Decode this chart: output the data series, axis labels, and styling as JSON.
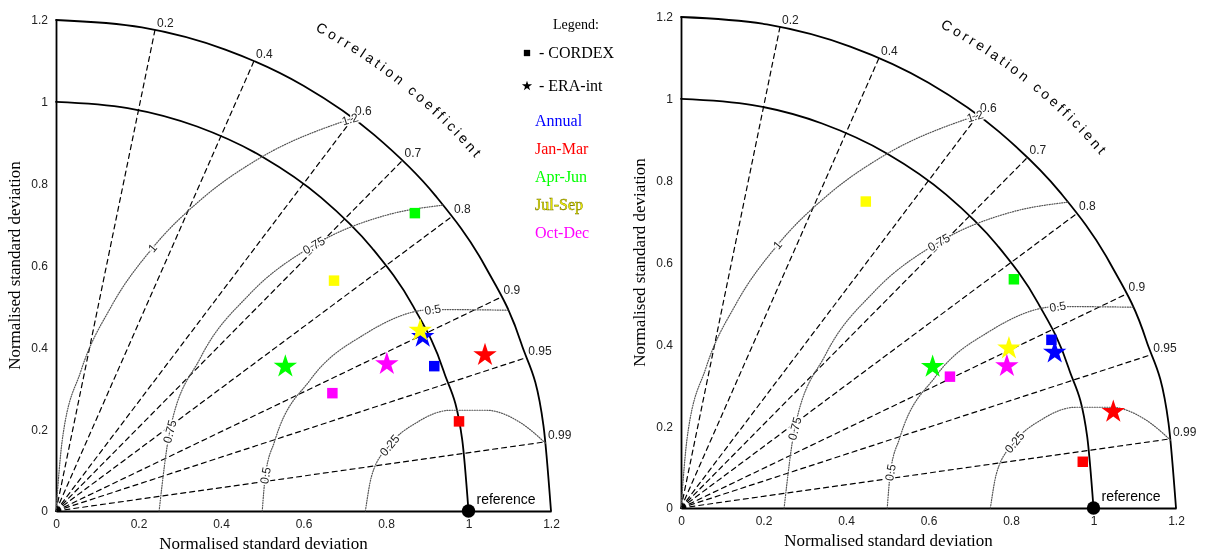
{
  "chart_data": [
    {
      "type": "scatter",
      "xlabel": "Normalised standard deviation",
      "ylabel": "Normalised standard deviation",
      "xlim": [
        0,
        1.2
      ],
      "ylim": [
        0,
        1.2
      ],
      "xticks": [
        0,
        0.2,
        0.4,
        0.6,
        0.8,
        1,
        1.2
      ],
      "yticks": [
        0,
        0.2,
        0.4,
        0.6,
        0.8,
        1,
        1.2
      ],
      "legend": "top right",
      "legend_title": "Legend:",
      "annotations": [
        "Correlation coefficient",
        "- CORDEX",
        "- ERA-int",
        {
          "text": "reference",
          "x": 1,
          "y": 0
        },
        {
          "text": "0.2",
          "x": 0.24,
          "y": 1.1758
        },
        {
          "text": "0.4",
          "x": 0.48,
          "y": 1.0998
        },
        {
          "text": "0.6",
          "x": 0.72,
          "y": 0.96
        },
        {
          "text": "0.7",
          "x": 0.84,
          "y": 0.857
        },
        {
          "text": "0.8",
          "x": 0.96,
          "y": 0.72
        },
        {
          "text": "0.9",
          "x": 1.08,
          "y": 0.5231
        },
        {
          "text": "0.95",
          "x": 1.14,
          "y": 0.3747
        },
        {
          "text": "0.99",
          "x": 1.188,
          "y": 0.1693
        },
        {
          "text": "0.25",
          "x": 0.8085,
          "y": 0.1607
        },
        {
          "text": "0.5",
          "x": 0.5076,
          "y": 0.0868
        },
        {
          "text": "0.5",
          "x": 0.9132,
          "y": 0.4924
        },
        {
          "text": "0.75",
          "x": 0.2756,
          "y": 0.1941
        },
        {
          "text": "0.75",
          "x": 0.625,
          "y": 0.6495
        },
        {
          "text": "1",
          "x": 0.234,
          "y": 0.6428
        },
        {
          "text": "1.2",
          "x": 0.7126,
          "y": 0.9578
        }
      ],
      "series": [
        {
          "type": "line",
          "color": "#000000",
          "line_style": "solid",
          "marker": "none",
          "x": [
            0,
            0.1736,
            0.342,
            0.5,
            0.6428,
            0.766,
            0.866,
            0.9397,
            0.9848,
            1
          ],
          "values": [
            1,
            0.9848,
            0.9397,
            0.866,
            0.766,
            0.6428,
            0.5,
            0.342,
            0.1736,
            0
          ]
        },
        {
          "type": "line",
          "color": "#000000",
          "line_style": "solid",
          "marker": "none",
          "x": [
            0,
            0.2083,
            0.4104,
            0.6,
            0.7714,
            0.9192,
            1.0392,
            1.1276,
            1.1818,
            1.2
          ],
          "values": [
            1.2,
            1.1818,
            1.1276,
            1.0392,
            0.9192,
            0.7714,
            0.6,
            0.4104,
            0.2083,
            0
          ]
        },
        {
          "type": "line",
          "color": "#000000",
          "line_style": "dashed",
          "marker": "none",
          "x": [
            0,
            0.24
          ],
          "values": [
            0,
            1.1758
          ]
        },
        {
          "type": "line",
          "color": "#000000",
          "line_style": "dashed",
          "marker": "none",
          "x": [
            0,
            0.48
          ],
          "values": [
            0,
            1.0998
          ]
        },
        {
          "type": "line",
          "color": "#000000",
          "line_style": "dashed",
          "marker": "none",
          "x": [
            0,
            0.72
          ],
          "values": [
            0,
            0.96
          ]
        },
        {
          "type": "line",
          "color": "#000000",
          "line_style": "dashed",
          "marker": "none",
          "x": [
            0,
            0.84
          ],
          "values": [
            0,
            0.857
          ]
        },
        {
          "type": "line",
          "color": "#000000",
          "line_style": "dashed",
          "marker": "none",
          "x": [
            0,
            0.96
          ],
          "values": [
            0,
            0.72
          ]
        },
        {
          "type": "line",
          "color": "#000000",
          "line_style": "dashed",
          "marker": "none",
          "x": [
            0,
            1.08
          ],
          "values": [
            0,
            0.5231
          ]
        },
        {
          "type": "line",
          "color": "#000000",
          "line_style": "dashed",
          "marker": "none",
          "x": [
            0,
            1.14
          ],
          "values": [
            0,
            0.3747
          ]
        },
        {
          "type": "line",
          "color": "#000000",
          "line_style": "dashed",
          "marker": "none",
          "x": [
            0,
            1.188
          ],
          "values": [
            0,
            0.1693
          ]
        },
        {
          "type": "line",
          "color": "#555555",
          "line_style": "dotted",
          "marker": "none",
          "x": [
            0.75,
            0.7651,
            0.8085,
            0.875,
            0.9566,
            1.0434,
            1.125,
            1.1887
          ],
          "values": [
            0,
            0.0855,
            0.1607,
            0.2165,
            0.2462,
            0.2462,
            0.2165,
            0.164
          ]
        },
        {
          "type": "line",
          "color": "#555555",
          "line_style": "dotted",
          "marker": "none",
          "x": [
            0.5,
            0.5076,
            0.5302,
            0.617,
            0.75,
            0.9132,
            1.0954
          ],
          "values": [
            0,
            0.0868,
            0.171,
            0.3214,
            0.433,
            0.4924,
            0.4908
          ]
        },
        {
          "type": "line",
          "color": "#555555",
          "line_style": "dotted",
          "marker": "none",
          "x": [
            0.25,
            0.2756,
            0.3505,
            0.4697,
            0.625,
            0.8059,
            0.9386
          ],
          "values": [
            0,
            0.1941,
            0.375,
            0.5303,
            0.6495,
            0.7244,
            0.7475
          ]
        },
        {
          "type": "line",
          "color": "#555555",
          "line_style": "dotted",
          "marker": "none",
          "x": [
            0,
            0.0152,
            0.0603,
            0.134,
            0.234,
            0.3572,
            0.5,
            0.7126
          ],
          "values": [
            0,
            0.1736,
            0.342,
            0.5,
            0.6428,
            0.766,
            0.866,
            0.9578
          ]
        },
        {
          "name": "Annual",
          "color": "#0000ff",
          "marker": "square",
          "x": [
            0.917
          ],
          "values": [
            0.354
          ]
        },
        {
          "name": "Jan-Mar",
          "color": "#ff0000",
          "marker": "square",
          "x": [
            0.977
          ],
          "values": [
            0.219
          ]
        },
        {
          "name": "Apr-Jun",
          "color": "#00ff00",
          "marker": "square",
          "x": [
            0.87
          ],
          "values": [
            0.728
          ]
        },
        {
          "name": "Jul-Sep",
          "color": "#ffff00",
          "marker": "square",
          "x": [
            0.674
          ],
          "values": [
            0.563
          ]
        },
        {
          "name": "Oct-Dec",
          "color": "#ff00ff",
          "marker": "square",
          "x": [
            0.67
          ],
          "values": [
            0.288
          ]
        },
        {
          "color": "#0000ff",
          "marker": "star",
          "x": [
            0.889
          ],
          "values": [
            0.426
          ]
        },
        {
          "color": "#ff0000",
          "marker": "star",
          "x": [
            1.04
          ],
          "values": [
            0.381
          ]
        },
        {
          "color": "#00ff00",
          "marker": "star",
          "x": [
            0.556
          ],
          "values": [
            0.353
          ]
        },
        {
          "color": "#ffff00",
          "marker": "star",
          "x": [
            0.883
          ],
          "values": [
            0.441
          ]
        },
        {
          "color": "#ff00ff",
          "marker": "star",
          "x": [
            0.802
          ],
          "values": [
            0.359
          ]
        },
        {
          "color": "#000000",
          "marker": "circle",
          "x": [
            1
          ],
          "values": [
            0
          ]
        }
      ]
    },
    {
      "type": "scatter",
      "xlabel": "Normalised standard deviation",
      "ylabel": "Normalised standard deviation",
      "xlim": [
        0,
        1.2
      ],
      "ylim": [
        0,
        1.2
      ],
      "xticks": [
        0,
        0.2,
        0.4,
        0.6,
        0.8,
        1,
        1.2
      ],
      "yticks": [
        0,
        0.2,
        0.4,
        0.6,
        0.8,
        1,
        1.2
      ],
      "annotations": [
        "Correlation coefficient",
        {
          "text": "reference",
          "x": 1,
          "y": 0
        },
        {
          "text": "0.2",
          "x": 0.24,
          "y": 1.1758
        },
        {
          "text": "0.4",
          "x": 0.48,
          "y": 1.0998
        },
        {
          "text": "0.6",
          "x": 0.72,
          "y": 0.96
        },
        {
          "text": "0.7",
          "x": 0.84,
          "y": 0.857
        },
        {
          "text": "0.8",
          "x": 0.96,
          "y": 0.72
        },
        {
          "text": "0.9",
          "x": 1.08,
          "y": 0.5231
        },
        {
          "text": "0.95",
          "x": 1.14,
          "y": 0.3747
        },
        {
          "text": "0.99",
          "x": 1.188,
          "y": 0.1693
        },
        {
          "text": "0.25",
          "x": 0.8085,
          "y": 0.1607
        },
        {
          "text": "0.5",
          "x": 0.5076,
          "y": 0.0868
        },
        {
          "text": "0.5",
          "x": 0.9132,
          "y": 0.4924
        },
        {
          "text": "0.75",
          "x": 0.2756,
          "y": 0.1941
        },
        {
          "text": "0.75",
          "x": 0.625,
          "y": 0.6495
        },
        {
          "text": "1",
          "x": 0.234,
          "y": 0.6428
        },
        {
          "text": "1.2",
          "x": 0.7126,
          "y": 0.9578
        }
      ],
      "series": [
        {
          "type": "line",
          "color": "#000000",
          "line_style": "solid",
          "marker": "none",
          "x": [
            0,
            0.1736,
            0.342,
            0.5,
            0.6428,
            0.766,
            0.866,
            0.9397,
            0.9848,
            1
          ],
          "values": [
            1,
            0.9848,
            0.9397,
            0.866,
            0.766,
            0.6428,
            0.5,
            0.342,
            0.1736,
            0
          ]
        },
        {
          "type": "line",
          "color": "#000000",
          "line_style": "solid",
          "marker": "none",
          "x": [
            0,
            0.2083,
            0.4104,
            0.6,
            0.7714,
            0.9192,
            1.0392,
            1.1276,
            1.1818,
            1.2
          ],
          "values": [
            1.2,
            1.1818,
            1.1276,
            1.0392,
            0.9192,
            0.7714,
            0.6,
            0.4104,
            0.2083,
            0
          ]
        },
        {
          "type": "line",
          "color": "#000000",
          "line_style": "dashed",
          "marker": "none",
          "x": [
            0,
            0.24
          ],
          "values": [
            0,
            1.1758
          ]
        },
        {
          "type": "line",
          "color": "#000000",
          "line_style": "dashed",
          "marker": "none",
          "x": [
            0,
            0.48
          ],
          "values": [
            0,
            1.0998
          ]
        },
        {
          "type": "line",
          "color": "#000000",
          "line_style": "dashed",
          "marker": "none",
          "x": [
            0,
            0.72
          ],
          "values": [
            0,
            0.96
          ]
        },
        {
          "type": "line",
          "color": "#000000",
          "line_style": "dashed",
          "marker": "none",
          "x": [
            0,
            0.84
          ],
          "values": [
            0,
            0.857
          ]
        },
        {
          "type": "line",
          "color": "#000000",
          "line_style": "dashed",
          "marker": "none",
          "x": [
            0,
            0.96
          ],
          "values": [
            0,
            0.72
          ]
        },
        {
          "type": "line",
          "color": "#000000",
          "line_style": "dashed",
          "marker": "none",
          "x": [
            0,
            1.08
          ],
          "values": [
            0,
            0.5231
          ]
        },
        {
          "type": "line",
          "color": "#000000",
          "line_style": "dashed",
          "marker": "none",
          "x": [
            0,
            1.14
          ],
          "values": [
            0,
            0.3747
          ]
        },
        {
          "type": "line",
          "color": "#000000",
          "line_style": "dashed",
          "marker": "none",
          "x": [
            0,
            1.188
          ],
          "values": [
            0,
            0.1693
          ]
        },
        {
          "type": "line",
          "color": "#555555",
          "line_style": "dotted",
          "marker": "none",
          "x": [
            0.75,
            0.7651,
            0.8085,
            0.875,
            0.9566,
            1.0434,
            1.125,
            1.1887
          ],
          "values": [
            0,
            0.0855,
            0.1607,
            0.2165,
            0.2462,
            0.2462,
            0.2165,
            0.164
          ]
        },
        {
          "type": "line",
          "color": "#555555",
          "line_style": "dotted",
          "marker": "none",
          "x": [
            0.5,
            0.5076,
            0.5302,
            0.617,
            0.75,
            0.9132,
            1.0954
          ],
          "values": [
            0,
            0.0868,
            0.171,
            0.3214,
            0.433,
            0.4924,
            0.4908
          ]
        },
        {
          "type": "line",
          "color": "#555555",
          "line_style": "dotted",
          "marker": "none",
          "x": [
            0.25,
            0.2756,
            0.3505,
            0.4697,
            0.625,
            0.8059,
            0.9386
          ],
          "values": [
            0,
            0.1941,
            0.375,
            0.5303,
            0.6495,
            0.7244,
            0.7475
          ]
        },
        {
          "type": "line",
          "color": "#555555",
          "line_style": "dotted",
          "marker": "none",
          "x": [
            0,
            0.0152,
            0.0603,
            0.134,
            0.234,
            0.3572,
            0.5,
            0.7126
          ],
          "values": [
            0,
            0.1736,
            0.342,
            0.5,
            0.6428,
            0.766,
            0.866,
            0.9578
          ]
        },
        {
          "color": "#0000ff",
          "marker": "square",
          "x": [
            0.898
          ],
          "values": [
            0.411
          ]
        },
        {
          "color": "#ff0000",
          "marker": "square",
          "x": [
            0.974
          ],
          "values": [
            0.113
          ]
        },
        {
          "color": "#00ff00",
          "marker": "square",
          "x": [
            0.807
          ],
          "values": [
            0.559
          ]
        },
        {
          "color": "#ffff00",
          "marker": "square",
          "x": [
            0.448
          ],
          "values": [
            0.749
          ]
        },
        {
          "color": "#ff00ff",
          "marker": "square",
          "x": [
            0.652
          ],
          "values": [
            0.321
          ]
        },
        {
          "color": "#0000ff",
          "marker": "star",
          "x": [
            0.906
          ],
          "values": [
            0.38
          ]
        },
        {
          "color": "#ff0000",
          "marker": "star",
          "x": [
            1.048
          ],
          "values": [
            0.235
          ]
        },
        {
          "color": "#00ff00",
          "marker": "star",
          "x": [
            0.61
          ],
          "values": [
            0.345
          ]
        },
        {
          "color": "#ffff00",
          "marker": "star",
          "x": [
            0.795
          ],
          "values": [
            0.39
          ]
        },
        {
          "color": "#ff00ff",
          "marker": "star",
          "x": [
            0.79
          ],
          "values": [
            0.347
          ]
        },
        {
          "color": "#000000",
          "marker": "circle",
          "x": [
            1
          ],
          "values": [
            0
          ]
        }
      ]
    }
  ]
}
